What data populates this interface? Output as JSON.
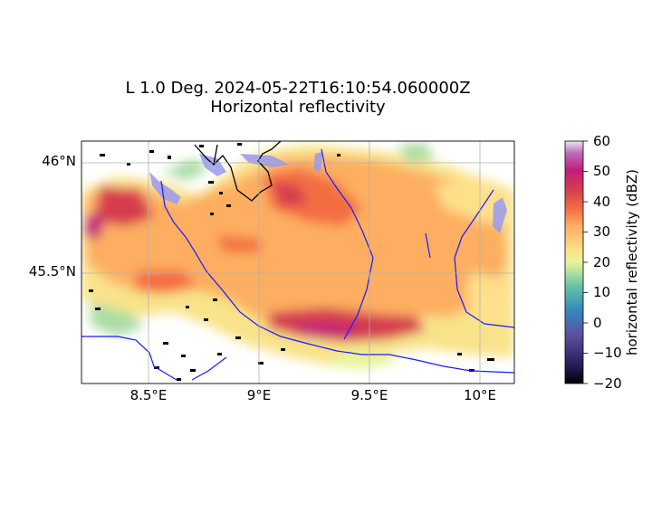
{
  "title": {
    "line1": "L 1.0 Deg. 2024-05-22T16:10:54.060000Z",
    "line2": "Horizontal reflectivity"
  },
  "map": {
    "lon_range": [
      8.2,
      10.15
    ],
    "lat_range": [
      45.25,
      46.1
    ],
    "x_ticks": [
      {
        "value": 8.5,
        "label": "8.5°E"
      },
      {
        "value": 9.0,
        "label": "9°E"
      },
      {
        "value": 9.5,
        "label": "9.5°E"
      },
      {
        "value": 10.0,
        "label": "10°E"
      }
    ],
    "y_ticks": [
      {
        "value": 46.0,
        "label": "46°N"
      },
      {
        "value": 45.5,
        "label": "45.5°N"
      }
    ],
    "grid": true,
    "river_color": "#1a1aff",
    "lake_color": "#9a9aee",
    "border_color": "#000000"
  },
  "colorbar": {
    "label": "horizontal reflectivity (dBZ)",
    "min": -20,
    "max": 60,
    "ticks": [
      "60",
      "50",
      "40",
      "30",
      "20",
      "10",
      "0",
      "−10",
      "−20"
    ],
    "colormap": "Spectral_r"
  }
}
